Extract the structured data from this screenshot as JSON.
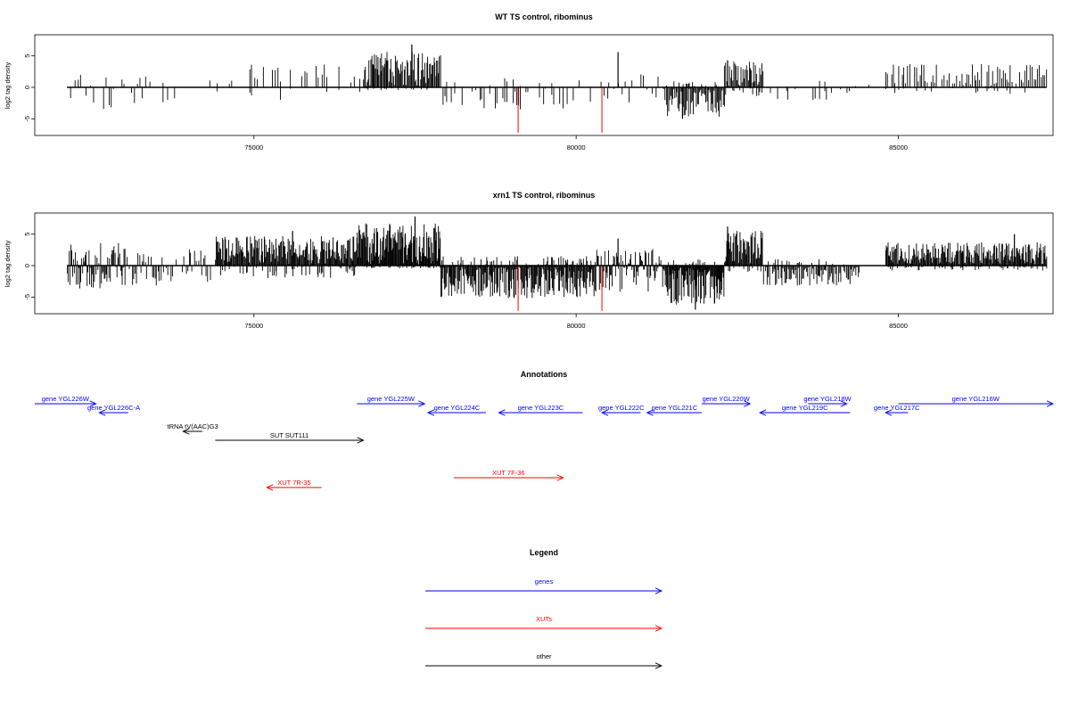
{
  "colors": {
    "genes": "#0000ff",
    "xuts": "#ff0000",
    "other": "#000000",
    "bars": "#000000",
    "highlight": "#ff0000"
  },
  "chart_data": [
    {
      "type": "bar",
      "title": "WT TS control, ribominus",
      "ylabel": "log2 tag density",
      "xlim": [
        71600,
        87400
      ],
      "ylim": [
        -7.5,
        8.5
      ],
      "xticks": [
        75000,
        80000,
        85000
      ],
      "xtick_labels": [
        "75000",
        "80000",
        "85000"
      ],
      "yticks": [
        5,
        0,
        -5
      ],
      "ytick_labels": [
        "5",
        "0",
        "-5"
      ],
      "baseline": 0,
      "grid": false,
      "highlight_bars": [
        {
          "x": 79100,
          "y": -7.2
        },
        {
          "x": 80400,
          "y": -7.2
        }
      ],
      "segments": [
        {
          "from": 72100,
          "to": 73400,
          "pattern": "mixed",
          "step": 40,
          "pos_max": 2.0,
          "neg_max": 3.5,
          "density": 0.6
        },
        {
          "from": 73400,
          "to": 74600,
          "pattern": "sparse",
          "step": 60,
          "pos_max": 2.5,
          "neg_max": 3.0,
          "density": 0.3
        },
        {
          "from": 74600,
          "to": 76700,
          "pattern": "pos",
          "step": 45,
          "pos_max": 3.5,
          "neg_max": 2.0,
          "density": 0.5
        },
        {
          "from": 76700,
          "to": 77900,
          "pattern": "pos",
          "step": 14,
          "pos_max": 5.5,
          "neg_max": 0.5,
          "density": 1.0
        },
        {
          "from": 77900,
          "to": 79800,
          "pattern": "neg",
          "step": 30,
          "pos_max": 1.5,
          "neg_max": 3.5,
          "density": 0.6
        },
        {
          "from": 79800,
          "to": 80500,
          "pattern": "mixed",
          "step": 45,
          "pos_max": 1.5,
          "neg_max": 3.0,
          "density": 0.5
        },
        {
          "from": 80500,
          "to": 81400,
          "pattern": "mixed",
          "step": 35,
          "pos_max": 2.0,
          "neg_max": 3.0,
          "density": 0.6
        },
        {
          "from": 81400,
          "to": 82300,
          "pattern": "neg",
          "step": 16,
          "pos_max": 1.0,
          "neg_max": 4.5,
          "density": 1.0
        },
        {
          "from": 82300,
          "to": 82900,
          "pattern": "pos",
          "step": 16,
          "pos_max": 4.0,
          "neg_max": 1.5,
          "density": 1.0
        },
        {
          "from": 82900,
          "to": 84300,
          "pattern": "neg",
          "step": 35,
          "pos_max": 1.5,
          "neg_max": 2.5,
          "density": 0.5
        },
        {
          "from": 84300,
          "to": 84800,
          "pattern": "sparse",
          "step": 80,
          "pos_max": 0.5,
          "neg_max": 0.5,
          "density": 0.1
        },
        {
          "from": 84800,
          "to": 87300,
          "pattern": "pos",
          "step": 28,
          "pos_max": 3.5,
          "neg_max": 1.0,
          "density": 0.8
        }
      ],
      "peaks": [
        {
          "x": 77450,
          "y": 6.8
        },
        {
          "x": 80650,
          "y": 5.6
        },
        {
          "x": 82350,
          "y": 4.3
        },
        {
          "x": 81650,
          "y": -5.0
        }
      ]
    },
    {
      "type": "bar",
      "title": "xrn1 TS control, ribominus",
      "ylabel": "log2 tag density",
      "xlim": [
        71600,
        87400
      ],
      "ylim": [
        -7.5,
        8.5
      ],
      "xticks": [
        75000,
        80000,
        85000
      ],
      "xtick_labels": [
        "75000",
        "80000",
        "85000"
      ],
      "yticks": [
        5,
        0,
        -5
      ],
      "ytick_labels": [
        "5",
        "0",
        "-5"
      ],
      "baseline": 0,
      "grid": false,
      "highlight_bars": [
        {
          "x": 79100,
          "y": -7.2
        },
        {
          "x": 80400,
          "y": -7.2
        }
      ],
      "segments": [
        {
          "from": 72100,
          "to": 73000,
          "pattern": "mixed",
          "step": 14,
          "pos_max": 3.5,
          "neg_max": 3.5,
          "density": 1.0
        },
        {
          "from": 73000,
          "to": 74400,
          "pattern": "mixed",
          "step": 22,
          "pos_max": 2.5,
          "neg_max": 3.0,
          "density": 0.7
        },
        {
          "from": 74400,
          "to": 76600,
          "pattern": "pos",
          "step": 12,
          "pos_max": 4.5,
          "neg_max": 2.0,
          "density": 1.0
        },
        {
          "from": 76600,
          "to": 77900,
          "pattern": "pos",
          "step": 10,
          "pos_max": 6.5,
          "neg_max": 0.5,
          "density": 1.0
        },
        {
          "from": 77900,
          "to": 80300,
          "pattern": "neg",
          "step": 12,
          "pos_max": 1.5,
          "neg_max": 5.0,
          "density": 1.0
        },
        {
          "from": 80300,
          "to": 81400,
          "pattern": "mixed",
          "step": 14,
          "pos_max": 2.5,
          "neg_max": 4.0,
          "density": 1.0
        },
        {
          "from": 81400,
          "to": 82300,
          "pattern": "neg",
          "step": 10,
          "pos_max": 1.0,
          "neg_max": 6.0,
          "density": 1.0
        },
        {
          "from": 82300,
          "to": 82900,
          "pattern": "pos",
          "step": 12,
          "pos_max": 5.5,
          "neg_max": 1.0,
          "density": 1.0
        },
        {
          "from": 82900,
          "to": 84400,
          "pattern": "neg",
          "step": 16,
          "pos_max": 1.0,
          "neg_max": 3.0,
          "density": 0.9
        },
        {
          "from": 84400,
          "to": 84800,
          "pattern": "sparse",
          "step": 80,
          "pos_max": 0.5,
          "neg_max": 0.5,
          "density": 0.1
        },
        {
          "from": 84800,
          "to": 87300,
          "pattern": "pos",
          "step": 12,
          "pos_max": 3.5,
          "neg_max": 0.8,
          "density": 1.0
        }
      ],
      "peaks": [
        {
          "x": 77500,
          "y": 7.8
        },
        {
          "x": 75600,
          "y": 5.5
        },
        {
          "x": 80650,
          "y": 4.3
        },
        {
          "x": 82350,
          "y": 6.2
        },
        {
          "x": 81850,
          "y": -7.0
        },
        {
          "x": 86800,
          "y": 5.0
        }
      ]
    }
  ],
  "annotations": {
    "title": "Annotations",
    "features": [
      {
        "label": "gene YGL226W",
        "kind": "gene",
        "strand": "+",
        "start": 71600,
        "end": 72550,
        "row": 0
      },
      {
        "label": "gene YGL226C-A",
        "kind": "gene",
        "strand": "-",
        "start": 72600,
        "end": 73050,
        "row": 1
      },
      {
        "label": "tRNA tV(AAC)G3",
        "kind": "other",
        "strand": "-",
        "start": 73900,
        "end": 74200,
        "row": 2
      },
      {
        "label": "SUT SUT111",
        "kind": "other",
        "strand": "+",
        "start": 74400,
        "end": 76700,
        "row": 3
      },
      {
        "label": "XUT 7R-35",
        "kind": "xut",
        "strand": "-",
        "start": 75200,
        "end": 76050,
        "row": 5
      },
      {
        "label": "gene YGL225W",
        "kind": "gene",
        "strand": "+",
        "start": 76600,
        "end": 77650,
        "row": 0
      },
      {
        "label": "gene YGL224C",
        "kind": "gene",
        "strand": "-",
        "start": 77700,
        "end": 78600,
        "row": 1
      },
      {
        "label": "XUT 7F-36",
        "kind": "xut",
        "strand": "+",
        "start": 78100,
        "end": 79800,
        "row": 4
      },
      {
        "label": "gene YGL223C",
        "kind": "gene",
        "strand": "-",
        "start": 78800,
        "end": 80100,
        "row": 1
      },
      {
        "label": "gene YGL222C",
        "kind": "gene",
        "strand": "-",
        "start": 80400,
        "end": 81000,
        "row": 1
      },
      {
        "label": "gene YGL221C",
        "kind": "gene",
        "strand": "-",
        "start": 81100,
        "end": 81950,
        "row": 1
      },
      {
        "label": "gene YGL220W",
        "kind": "gene",
        "strand": "+",
        "start": 81950,
        "end": 82700,
        "row": 0
      },
      {
        "label": "gene YGL219C",
        "kind": "gene",
        "strand": "-",
        "start": 82850,
        "end": 84250,
        "row": 1
      },
      {
        "label": "gene YGL218W",
        "kind": "gene",
        "strand": "+",
        "start": 83600,
        "end": 84200,
        "row": 0
      },
      {
        "label": "gene YGL217C",
        "kind": "gene",
        "strand": "-",
        "start": 84800,
        "end": 85150,
        "row": 1
      },
      {
        "label": "gene YGL216W",
        "kind": "gene",
        "strand": "+",
        "start": 85000,
        "end": 87400,
        "row": 0
      }
    ]
  },
  "legend": {
    "title": "Legend",
    "entries": [
      {
        "label": "genes",
        "kind": "gene"
      },
      {
        "label": "XUTs",
        "kind": "xut"
      },
      {
        "label": "other",
        "kind": "other"
      }
    ]
  }
}
